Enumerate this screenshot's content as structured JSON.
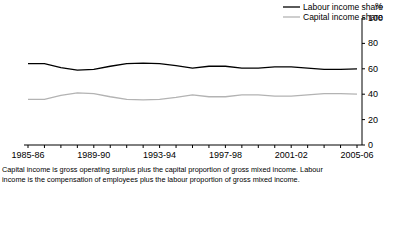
{
  "chart_data": {
    "type": "line",
    "y_label": "%",
    "categories": [
      "1985-86",
      null,
      null,
      null,
      "1989-90",
      null,
      null,
      null,
      "1993-94",
      null,
      null,
      null,
      "1997-98",
      null,
      null,
      null,
      "2001-02",
      null,
      null,
      null,
      "2005-06"
    ],
    "series": [
      {
        "name": "Labour income share",
        "color": "#000000",
        "values": [
          64,
          64,
          61,
          59,
          59.5,
          62,
          64,
          64.5,
          64,
          62.5,
          60.5,
          62,
          62,
          60.5,
          60.5,
          61.5,
          61.5,
          60.5,
          59.5,
          59.5,
          60
        ]
      },
      {
        "name": "Capital income share",
        "color": "#b3b3b3",
        "values": [
          36,
          36,
          39,
          41,
          40.5,
          38,
          36,
          35.5,
          36,
          37.5,
          39.5,
          38,
          38,
          39.5,
          39.5,
          38.5,
          38.5,
          39.5,
          40.5,
          40.5,
          40
        ]
      }
    ],
    "ylim": [
      0,
      100
    ],
    "yticks": [
      0,
      20,
      40,
      60,
      80,
      100
    ],
    "grid": false,
    "legend": "top-right",
    "notes": [
      "Capital income is gross operating surplus plus the capital proportion of gross mixed income. Labour",
      "income is the compensation of employees plus the labour proportion of gross mixed income."
    ]
  }
}
